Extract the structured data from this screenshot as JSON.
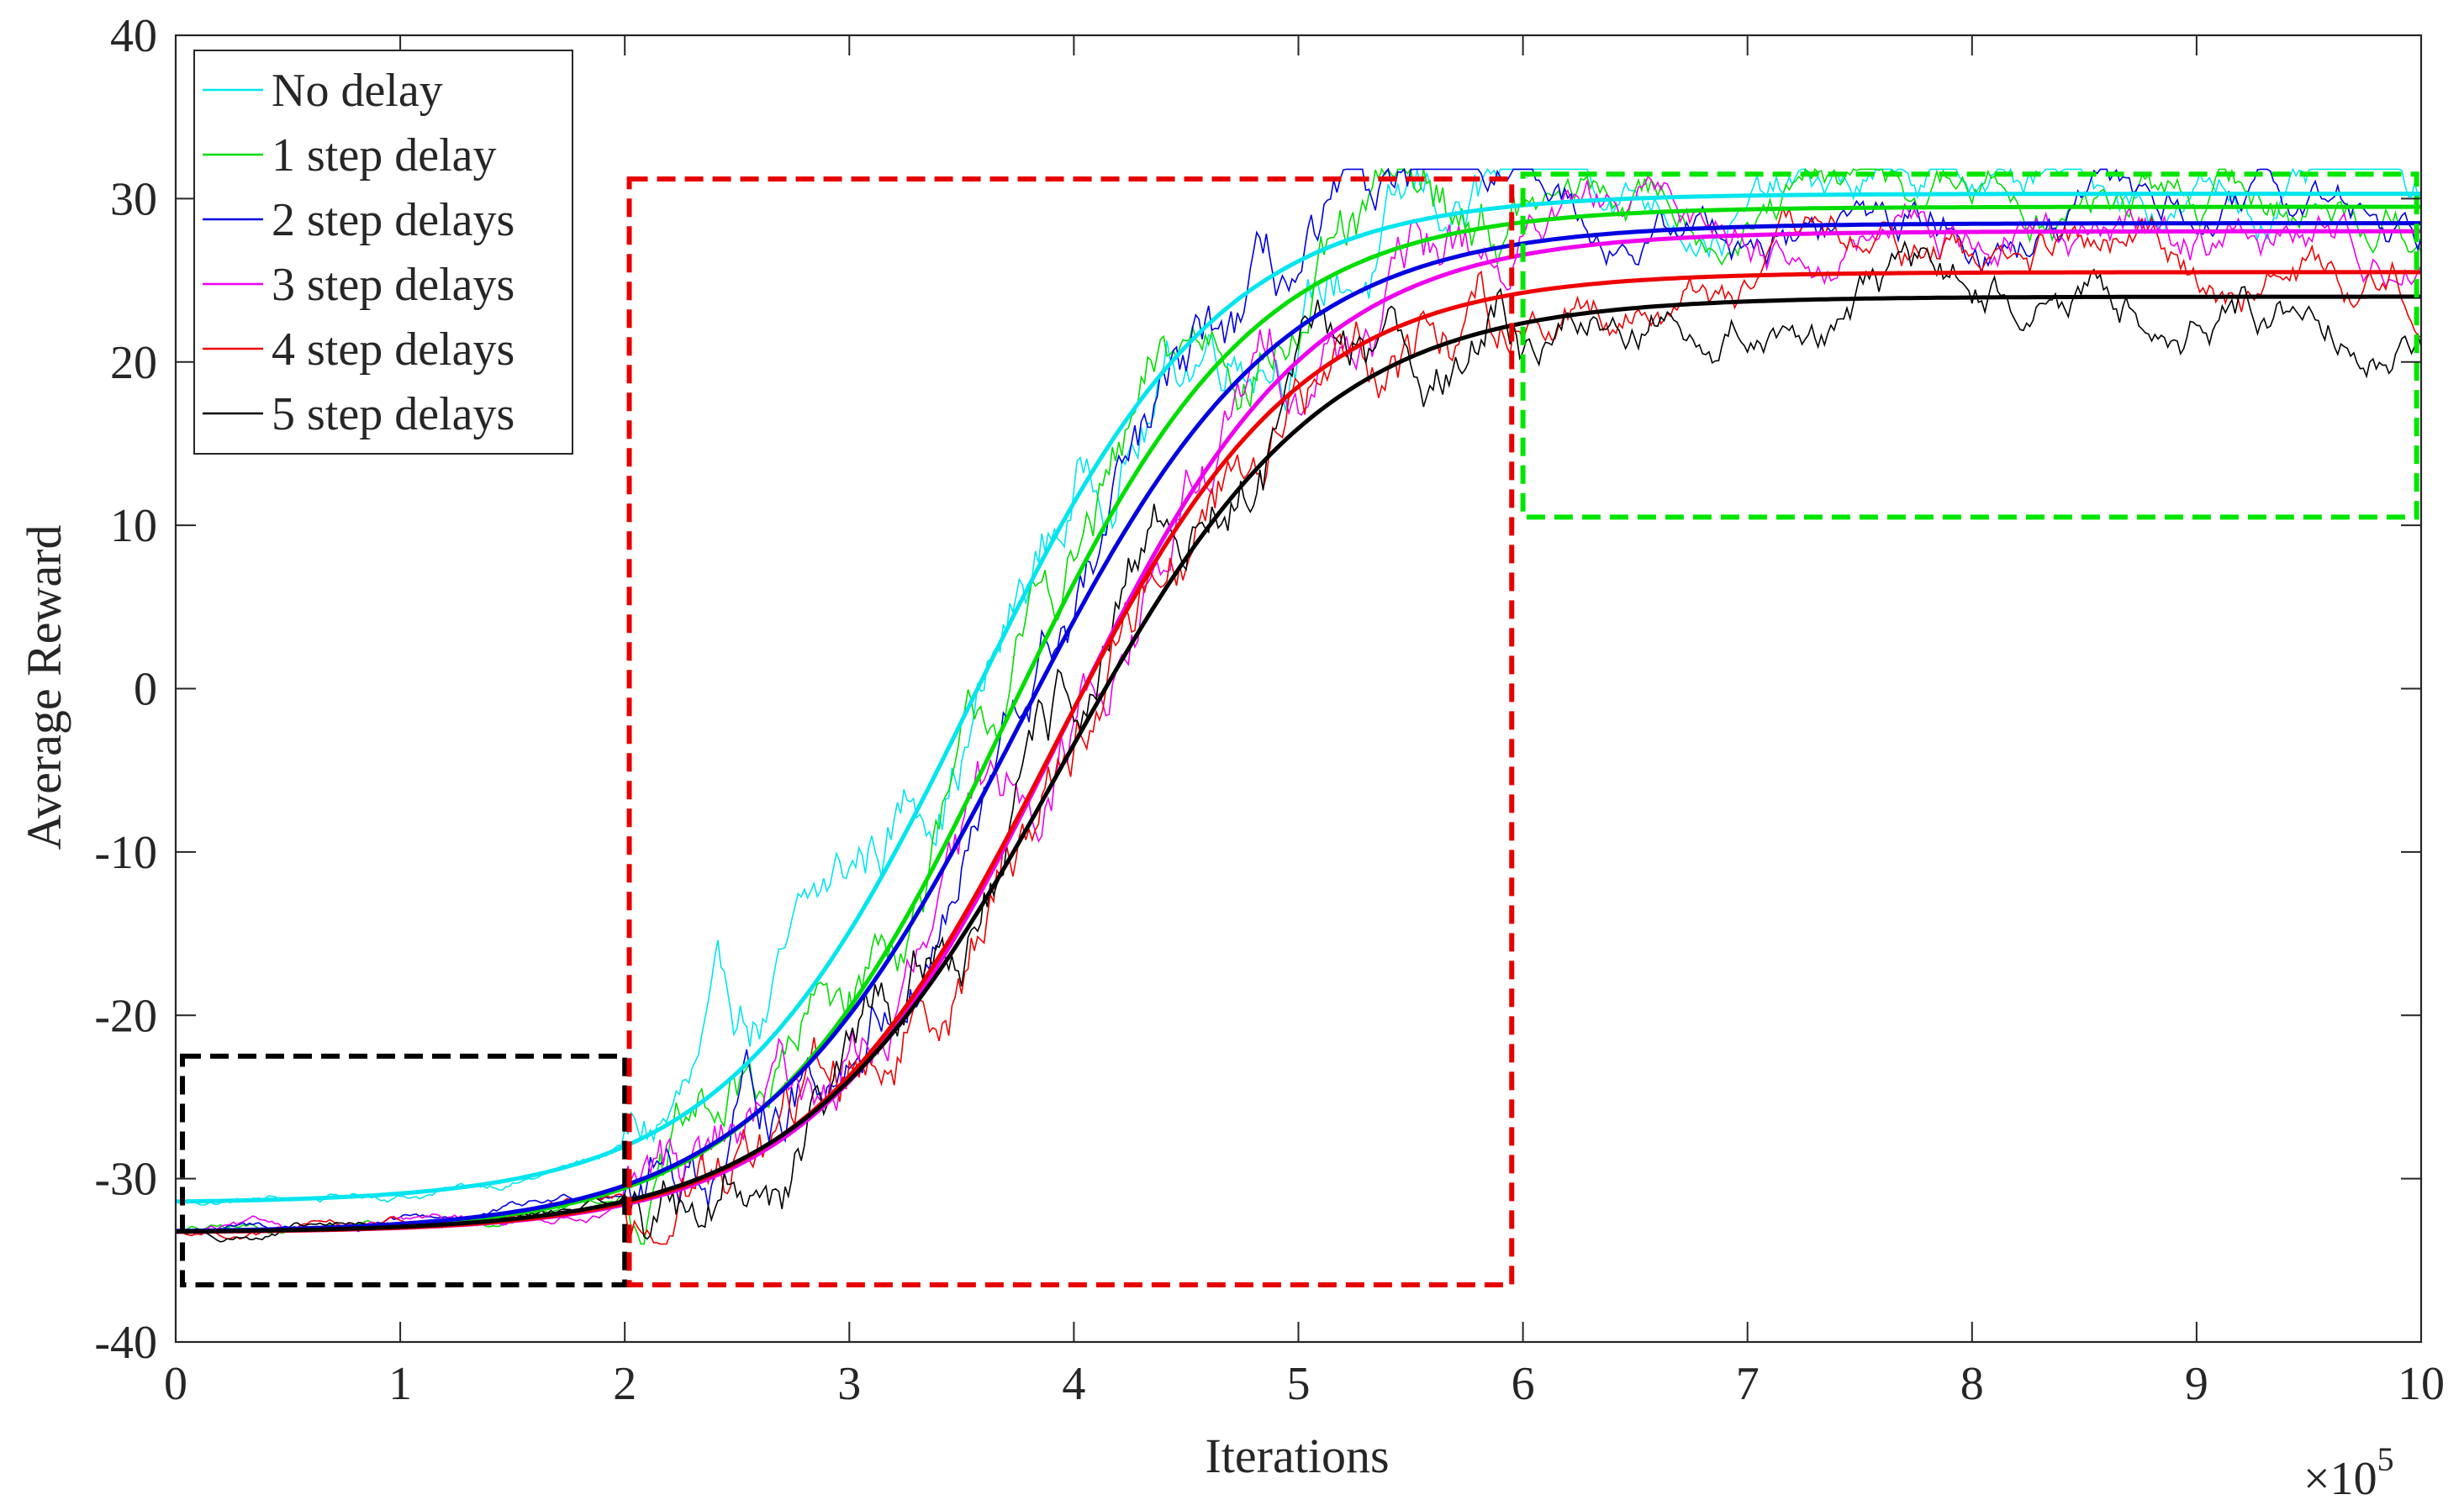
{
  "chart_data": {
    "type": "line",
    "title": "",
    "xlabel": "Iterations",
    "ylabel": "Average Reward",
    "x_multiplier_label": "×10",
    "x_multiplier_exponent": "5",
    "xlim": [
      0,
      10
    ],
    "ylim": [
      -40,
      40
    ],
    "xticks": [
      0,
      1,
      2,
      3,
      4,
      5,
      6,
      7,
      8,
      9,
      10
    ],
    "yticks": [
      -40,
      -30,
      -20,
      -10,
      0,
      10,
      20,
      30,
      40
    ],
    "grid": false,
    "legend_position": "top-left",
    "series": [
      {
        "name": "No delay",
        "color": "#00e5ee",
        "start": -31.5,
        "end": 30.3,
        "midpoint": 3.55,
        "scale": 0.55
      },
      {
        "name": "1 step delay",
        "color": "#00dd00",
        "start": -33.3,
        "end": 29.5,
        "midpoint": 3.7,
        "scale": 0.55
      },
      {
        "name": "2 step delays",
        "color": "#0000e0",
        "start": -33.3,
        "end": 28.5,
        "midpoint": 3.75,
        "scale": 0.58
      },
      {
        "name": "3 step delays",
        "color": "#ee00ee",
        "start": -33.3,
        "end": 28.0,
        "midpoint": 3.95,
        "scale": 0.55
      },
      {
        "name": "4 step delays",
        "color": "#ee0000",
        "start": -33.3,
        "end": 25.5,
        "midpoint": 3.9,
        "scale": 0.55
      },
      {
        "name": "5 step delays",
        "color": "#000000",
        "start": -33.3,
        "end": 24.0,
        "midpoint": 3.95,
        "scale": 0.58
      }
    ],
    "annotations": [
      {
        "name": "initial-phase-box",
        "color": "#000000",
        "x0": 0.03,
        "x1": 2.0,
        "y0": -36.5,
        "y1": -22.5
      },
      {
        "name": "learning-phase-box",
        "color": "#e60000",
        "x0": 2.02,
        "x1": 5.95,
        "y0": -36.5,
        "y1": 31.2
      },
      {
        "name": "converged-phase-box",
        "color": "#00e600",
        "x0": 6.0,
        "x1": 9.98,
        "y0": 10.5,
        "y1": 31.5
      }
    ]
  }
}
